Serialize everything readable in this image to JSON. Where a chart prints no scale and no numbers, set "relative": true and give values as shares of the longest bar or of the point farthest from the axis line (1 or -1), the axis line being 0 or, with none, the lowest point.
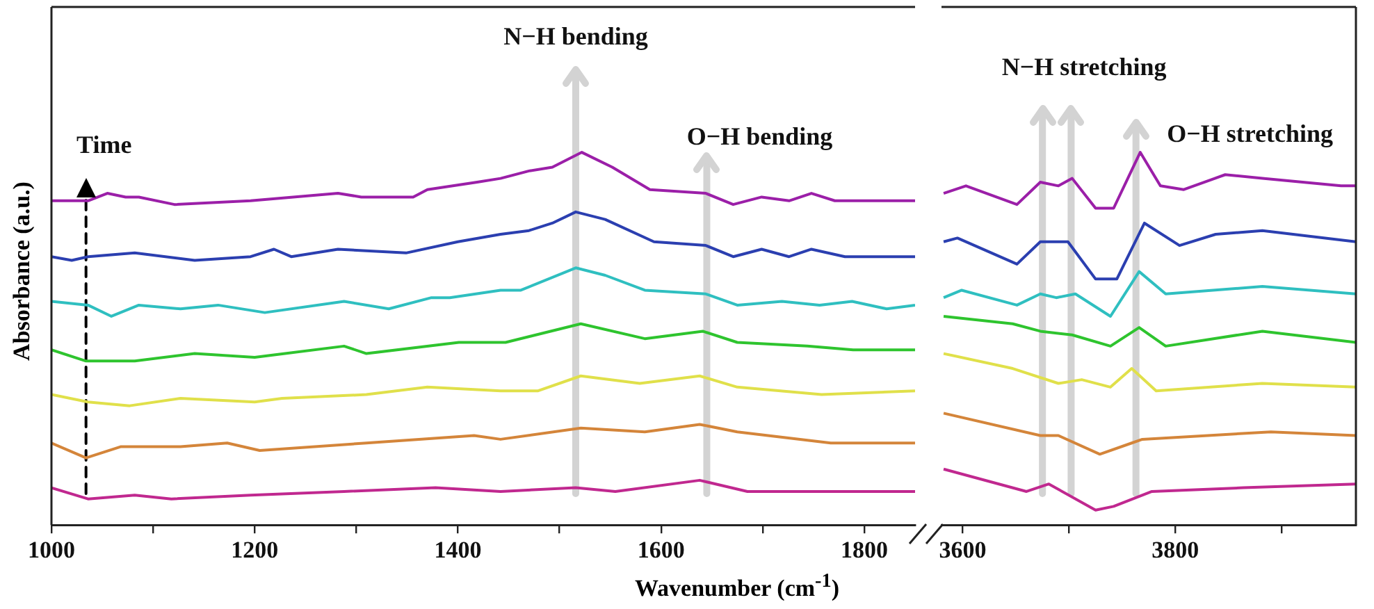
{
  "chart_data": [
    {
      "type": "line",
      "relative": true,
      "ylabel": "Absorbance (a.u.)",
      "xlabel": "Wavenumber (cm$^{-1}$)",
      "xlim": [
        1000,
        1850
      ],
      "xticks": [
        1000,
        {
          "value": 1100,
          "label": null
        },
        1200,
        {
          "value": 1300,
          "label": null
        },
        1400,
        {
          "value": 1500,
          "label": null
        },
        1600,
        {
          "value": 1700,
          "label": null
        },
        1800
      ],
      "ref_lines": [
        {
          "axis": "x",
          "value": 1034,
          "label": "Time",
          "color": "#000000",
          "line_style": "dashed"
        },
        {
          "axis": "x",
          "value": 1516,
          "label": "N−H bending",
          "color": "#d3d3d3"
        },
        {
          "axis": "x",
          "value": 1645,
          "label": "O−H bending",
          "color": "#d3d3d3"
        }
      ],
      "series": [
        {
          "color": "#9b1fa8",
          "x": [
            1000,
            1036,
            1055,
            1073,
            1086,
            1121,
            1196,
            1282,
            1305,
            1356,
            1370,
            1419,
            1442,
            1470,
            1493,
            1522,
            1552,
            1589,
            1644,
            1671,
            1699,
            1726,
            1748,
            1771,
            1822,
            1850
          ],
          "values": [
            0.87,
            0.87,
            0.89,
            0.88,
            0.88,
            0.86,
            0.87,
            0.89,
            0.88,
            0.88,
            0.9,
            0.92,
            0.93,
            0.95,
            0.96,
            1,
            0.96,
            0.9,
            0.89,
            0.86,
            0.88,
            0.87,
            0.89,
            0.87,
            0.87,
            0.87
          ]
        },
        {
          "color": "#2b3fb0",
          "x": [
            1000,
            1020,
            1036,
            1082,
            1141,
            1196,
            1219,
            1236,
            1282,
            1349,
            1400,
            1442,
            1470,
            1493,
            1516,
            1545,
            1593,
            1644,
            1671,
            1699,
            1726,
            1748,
            1781,
            1850
          ],
          "values": [
            0.72,
            0.71,
            0.72,
            0.73,
            0.71,
            0.72,
            0.74,
            0.72,
            0.74,
            0.73,
            0.76,
            0.78,
            0.79,
            0.81,
            0.84,
            0.82,
            0.76,
            0.75,
            0.72,
            0.74,
            0.72,
            0.74,
            0.72,
            0.72
          ]
        },
        {
          "color": "#2fbfc0",
          "x": [
            1000,
            1036,
            1059,
            1086,
            1127,
            1164,
            1210,
            1288,
            1332,
            1374,
            1392,
            1442,
            1462,
            1516,
            1545,
            1584,
            1644,
            1675,
            1719,
            1756,
            1788,
            1822,
            1850
          ],
          "values": [
            0.6,
            0.59,
            0.56,
            0.59,
            0.58,
            0.59,
            0.57,
            0.6,
            0.58,
            0.61,
            0.61,
            0.63,
            0.63,
            0.69,
            0.67,
            0.63,
            0.62,
            0.59,
            0.6,
            0.59,
            0.6,
            0.58,
            0.59
          ]
        },
        {
          "color": "#2ec42e",
          "x": [
            1000,
            1034,
            1082,
            1141,
            1200,
            1288,
            1310,
            1401,
            1447,
            1521,
            1584,
            1641,
            1675,
            1744,
            1789,
            1850
          ],
          "values": [
            0.47,
            0.44,
            0.44,
            0.46,
            0.45,
            0.48,
            0.46,
            0.49,
            0.49,
            0.54,
            0.5,
            0.52,
            0.49,
            0.48,
            0.47,
            0.47
          ]
        },
        {
          "color": "#e0e04a",
          "x": [
            1000,
            1036,
            1077,
            1127,
            1200,
            1227,
            1310,
            1370,
            1442,
            1479,
            1521,
            1579,
            1638,
            1675,
            1758,
            1850
          ],
          "values": [
            0.35,
            0.33,
            0.32,
            0.34,
            0.33,
            0.34,
            0.35,
            0.37,
            0.36,
            0.36,
            0.4,
            0.38,
            0.4,
            0.37,
            0.35,
            0.36
          ]
        },
        {
          "color": "#d4853a",
          "x": [
            1000,
            1034,
            1068,
            1127,
            1173,
            1205,
            1310,
            1416,
            1442,
            1521,
            1584,
            1638,
            1675,
            1767,
            1850
          ],
          "values": [
            0.22,
            0.18,
            0.21,
            0.21,
            0.22,
            0.2,
            0.22,
            0.24,
            0.23,
            0.26,
            0.25,
            0.27,
            0.25,
            0.22,
            0.22
          ]
        },
        {
          "color": "#c0288f",
          "x": [
            1000,
            1036,
            1082,
            1118,
            1196,
            1288,
            1378,
            1442,
            1516,
            1555,
            1638,
            1685,
            1850
          ],
          "values": [
            0.1,
            0.07,
            0.08,
            0.07,
            0.08,
            0.09,
            0.1,
            0.09,
            0.1,
            0.09,
            0.12,
            0.09,
            0.09
          ]
        }
      ]
    },
    {
      "type": "line",
      "relative": true,
      "xlim": [
        3580,
        3970
      ],
      "xticks": [
        3600,
        {
          "value": 3700,
          "label": null
        },
        3800,
        {
          "value": 3900,
          "label": null
        }
      ],
      "ref_lines": [
        {
          "axis": "x",
          "value": 3675,
          "label": "N−H stretching",
          "color": "#d3d3d3"
        },
        {
          "axis": "x",
          "value": 3702,
          "label": null,
          "color": "#d3d3d3"
        },
        {
          "axis": "x",
          "value": 3763,
          "label": "O−H stretching",
          "color": "#d3d3d3"
        }
      ],
      "series": [
        {
          "color": "#9b1fa8",
          "x": [
            3582,
            3603,
            3651,
            3673,
            3690,
            3703,
            3725,
            3742,
            3767,
            3786,
            3808,
            3847,
            3882,
            3956,
            3970
          ],
          "values": [
            0.89,
            0.91,
            0.86,
            0.92,
            0.91,
            0.93,
            0.85,
            0.85,
            1,
            0.91,
            0.9,
            0.94,
            0.93,
            0.91,
            0.91
          ]
        },
        {
          "color": "#2b3fb0",
          "x": [
            3582,
            3595,
            3651,
            3673,
            3699,
            3725,
            3745,
            3771,
            3804,
            3838,
            3882,
            3970
          ],
          "values": [
            0.76,
            0.77,
            0.7,
            0.76,
            0.76,
            0.66,
            0.66,
            0.81,
            0.75,
            0.78,
            0.79,
            0.76
          ]
        },
        {
          "color": "#2fbfc0",
          "x": [
            3582,
            3599,
            3651,
            3673,
            3688,
            3706,
            3739,
            3766,
            3791,
            3882,
            3970
          ],
          "values": [
            0.61,
            0.63,
            0.59,
            0.62,
            0.61,
            0.62,
            0.56,
            0.68,
            0.62,
            0.64,
            0.62
          ]
        },
        {
          "color": "#2ec42e",
          "x": [
            3582,
            3647,
            3673,
            3703,
            3739,
            3766,
            3791,
            3882,
            3970
          ],
          "values": [
            0.56,
            0.54,
            0.52,
            0.51,
            0.48,
            0.53,
            0.48,
            0.52,
            0.49
          ]
        },
        {
          "color": "#e0e04a",
          "x": [
            3582,
            3647,
            3690,
            3712,
            3739,
            3759,
            3782,
            3882,
            3970
          ],
          "values": [
            0.46,
            0.42,
            0.38,
            0.39,
            0.37,
            0.42,
            0.36,
            0.38,
            0.37
          ]
        },
        {
          "color": "#d4853a",
          "x": [
            3582,
            3673,
            3690,
            3729,
            3759,
            3769,
            3890,
            3970
          ],
          "values": [
            0.3,
            0.24,
            0.24,
            0.19,
            0.22,
            0.23,
            0.25,
            0.24
          ]
        },
        {
          "color": "#c0288f",
          "x": [
            3582,
            3660,
            3681,
            3725,
            3742,
            3778,
            3864,
            3970
          ],
          "values": [
            0.15,
            0.09,
            0.11,
            0.04,
            0.05,
            0.09,
            0.1,
            0.11
          ]
        }
      ]
    }
  ]
}
